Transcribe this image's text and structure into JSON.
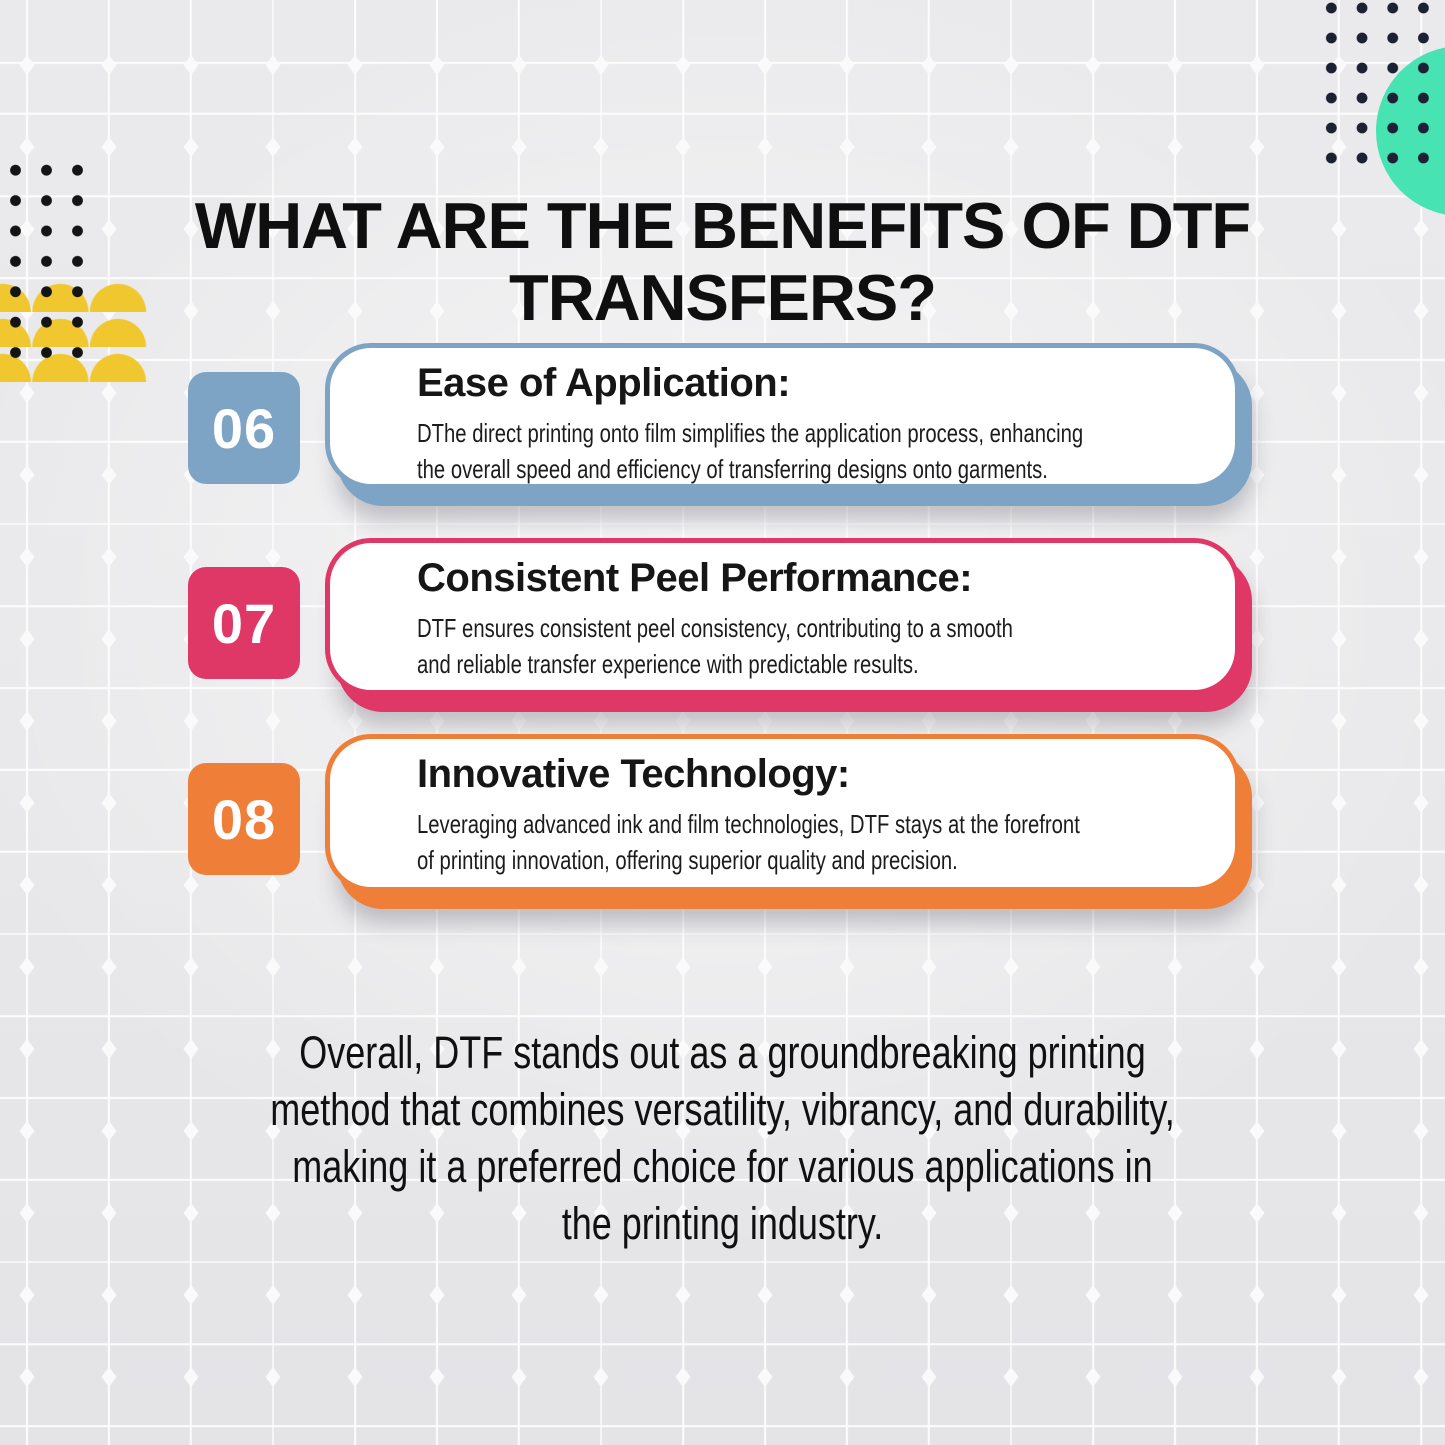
{
  "title": {
    "full": "WHAT ARE THE BENEFITS OF DTF TRANSFERS?",
    "lines": [
      "WHAT ARE THE BENEFITS OF DTF",
      "TRANSFERS?"
    ]
  },
  "cards": [
    {
      "number": "06",
      "heading": "Ease of Application:",
      "body": "DThe direct printing onto film simplifies the application process, enhancing the overall speed and efficiency of transferring designs onto garments.",
      "body_lines": [
        "DThe direct printing onto film simplifies the application process, enhancing",
        "the overall speed and efficiency of transferring designs onto garments."
      ],
      "color": "#7da4c4"
    },
    {
      "number": "07",
      "heading": "Consistent Peel Performance:",
      "body": "DTF ensures consistent peel consistency, contributing to a smooth and reliable transfer experience with predictable results.",
      "body_lines": [
        "DTF ensures consistent peel consistency, contributing to a smooth",
        "and reliable transfer experience with predictable results."
      ],
      "color": "#e03866"
    },
    {
      "number": "08",
      "heading": "Innovative Technology:",
      "body": "Leveraging advanced ink and film technologies, DTF stays at the forefront of printing innovation, offering superior quality and precision.",
      "body_lines": [
        "Leveraging advanced ink and film technologies, DTF stays at the forefront",
        "of printing innovation, offering superior quality and precision."
      ],
      "color": "#ef7e39"
    }
  ],
  "conclusion": {
    "full": "Overall, DTF stands out as a groundbreaking printing method that combines versatility, vibrancy, and durability, making it a preferred choice for various applications in the printing industry.",
    "lines": [
      "Overall, DTF stands out as a groundbreaking printing",
      "method that combines versatility, vibrancy, and durability,",
      "making it a preferred choice for various applications in",
      "the printing industry."
    ]
  },
  "decorations": {
    "teal_circle": {
      "icon": "teal-circle-icon",
      "color": "#47e3b2"
    },
    "dot_grid_right": {
      "icon": "dot-grid-icon",
      "color": "#1c2134"
    },
    "dot_grid_left": {
      "icon": "dot-grid-icon",
      "color": "#141414"
    },
    "yellow_scallops": {
      "icon": "yellow-scallops-icon",
      "color": "#f0c72f"
    }
  },
  "colors": {
    "background": "#e8e8ea",
    "grid_lines": "#ffffff",
    "card_background": "#ffffff",
    "text": "#111111"
  }
}
